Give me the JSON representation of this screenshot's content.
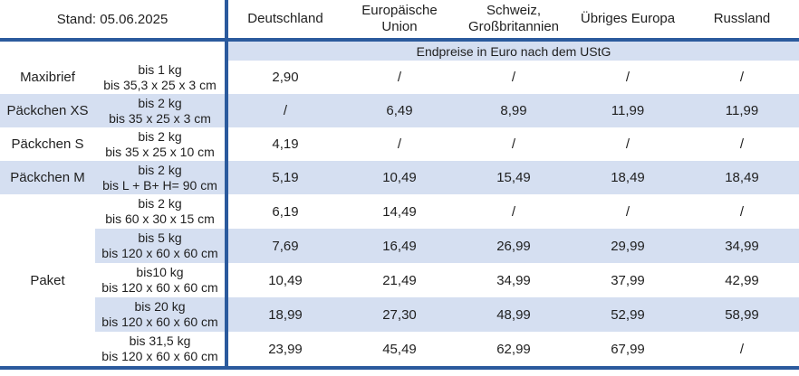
{
  "header": {
    "stand": "Stand: 05.06.2025",
    "columns": [
      "Deutschland",
      "Europäische Union",
      "Schweiz, Großbritannien",
      "Übriges Europa",
      "Russland"
    ]
  },
  "subheader": {
    "text": "Endpreise in Euro nach dem UStG"
  },
  "rows": [
    {
      "product": "Maxibrief",
      "weight": "bis 1 kg",
      "dims": "bis 35,3 x 25 x 3 cm",
      "prices": [
        "2,90",
        "/",
        "/",
        "/",
        "/"
      ]
    },
    {
      "product": "Päckchen XS",
      "weight": "bis 2 kg",
      "dims": "bis 35 x 25 x 3 cm",
      "prices": [
        "/",
        "6,49",
        "8,99",
        "11,99",
        "11,99"
      ]
    },
    {
      "product": "Päckchen S",
      "weight": "bis 2 kg",
      "dims": "bis 35 x 25 x 10 cm",
      "prices": [
        "4,19",
        "/",
        "/",
        "/",
        "/"
      ]
    },
    {
      "product": "Päckchen M",
      "weight": "bis 2 kg",
      "dims": "bis L + B+ H= 90 cm",
      "prices": [
        "5,19",
        "10,49",
        "15,49",
        "18,49",
        "18,49"
      ]
    },
    {
      "product": "Paket",
      "weight": "bis 2 kg",
      "dims": "bis 60 x 30 x 15 cm",
      "prices": [
        "6,19",
        "14,49",
        "/",
        "/",
        "/"
      ]
    },
    {
      "product": "Paket",
      "weight": "bis 5 kg",
      "dims": "bis 120 x 60 x 60 cm",
      "prices": [
        "7,69",
        "16,49",
        "26,99",
        "29,99",
        "34,99"
      ]
    },
    {
      "product": "Paket",
      "weight": "bis10 kg",
      "dims": "bis 120 x 60 x 60 cm",
      "prices": [
        "10,49",
        "21,49",
        "34,99",
        "37,99",
        "42,99"
      ]
    },
    {
      "product": "Paket",
      "weight": "bis 20 kg",
      "dims": "bis 120 x 60 x 60 cm",
      "prices": [
        "18,99",
        "27,30",
        "48,99",
        "52,99",
        "58,99"
      ]
    },
    {
      "product": "Paket",
      "weight": "bis 31,5 kg",
      "dims": "bis 120 x 60 x 60 cm",
      "prices": [
        "23,99",
        "45,49",
        "62,99",
        "67,99",
        "/"
      ]
    }
  ],
  "colors": {
    "accent_line": "#2B5A9D",
    "row_shade": "#D5DFF1",
    "text": "#1F1F1F"
  }
}
